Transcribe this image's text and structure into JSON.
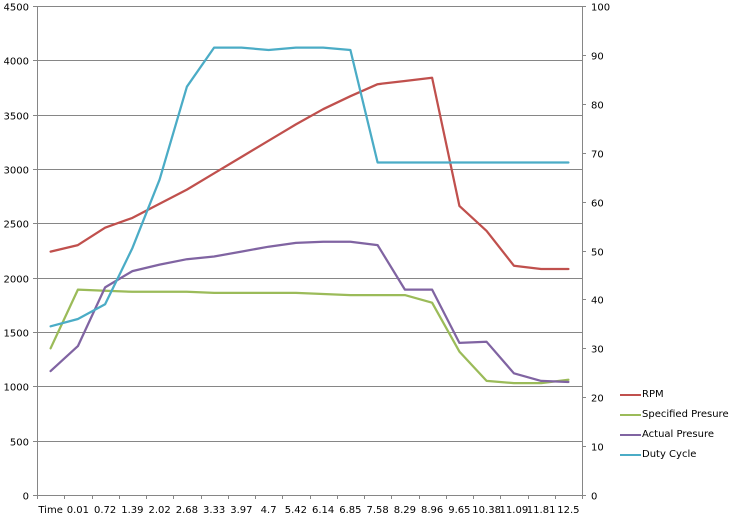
{
  "chart_data": {
    "type": "line",
    "title": "",
    "xlabel": "",
    "ylabel": "",
    "y2label": "",
    "categories": [
      "Time",
      "0.01",
      "0.72",
      "1.39",
      "2.02",
      "2.68",
      "3.33",
      "3.97",
      "4.7",
      "5.42",
      "6.14",
      "6.85",
      "7.58",
      "8.29",
      "8.96",
      "9.65",
      "10.38",
      "11.09",
      "11.81",
      "12.5"
    ],
    "ylim": [
      0,
      4500
    ],
    "y_ticks": [
      0,
      500,
      1000,
      1500,
      2000,
      2500,
      3000,
      3500,
      4000,
      4500
    ],
    "y2lim": [
      0,
      100
    ],
    "y2_ticks": [
      0,
      10,
      20,
      30,
      40,
      50,
      60,
      70,
      80,
      90,
      100
    ],
    "grid": true,
    "legend_position": "right",
    "series": [
      {
        "name": "RPM",
        "axis": "left",
        "color": "#c0504d",
        "values": [
          2240,
          2300,
          2460,
          2550,
          2680,
          2810,
          2960,
          3110,
          3260,
          3410,
          3550,
          3670,
          3780,
          3810,
          3840,
          2660,
          2430,
          2110,
          2080,
          2080
        ]
      },
      {
        "name": "Specified Presure",
        "axis": "left",
        "color": "#9bbb59",
        "values": [
          1350,
          1890,
          1880,
          1870,
          1870,
          1870,
          1860,
          1860,
          1860,
          1860,
          1850,
          1840,
          1840,
          1840,
          1770,
          1320,
          1050,
          1030,
          1030,
          1060
        ]
      },
      {
        "name": "Actual Presure",
        "axis": "left",
        "color": "#8064a2",
        "values": [
          1140,
          1370,
          1910,
          2060,
          2120,
          2170,
          2195,
          2240,
          2285,
          2320,
          2330,
          2330,
          2300,
          1890,
          1890,
          1400,
          1410,
          1120,
          1050,
          1040
        ]
      },
      {
        "name": "Duty Cycle",
        "axis": "right",
        "color": "#4bacc6",
        "values": [
          34.5,
          36,
          39,
          50.5,
          64.5,
          83.5,
          91.5,
          91.5,
          91,
          91.5,
          91.5,
          91,
          68,
          68,
          68,
          68,
          68,
          68,
          68,
          68
        ]
      }
    ]
  },
  "legend": {
    "items": [
      {
        "label": "RPM",
        "color": "#c0504d"
      },
      {
        "label": "Specified Presure",
        "color": "#9bbb59"
      },
      {
        "label": "Actual Presure",
        "color": "#8064a2"
      },
      {
        "label": "Duty Cycle",
        "color": "#4bacc6"
      }
    ]
  }
}
